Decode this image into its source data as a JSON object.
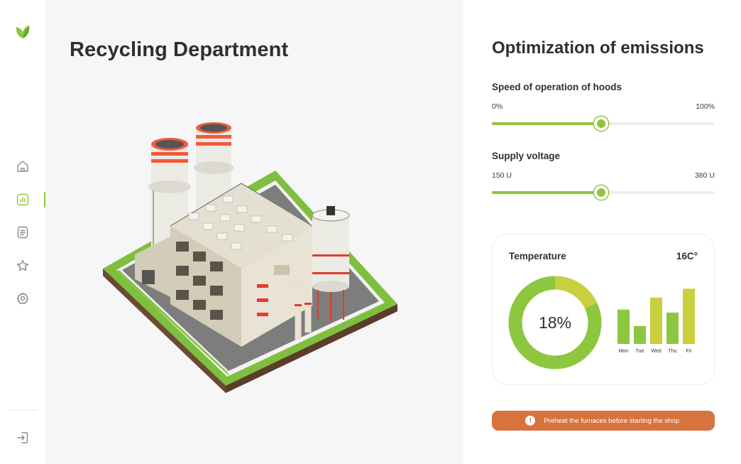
{
  "app": {
    "brand_color": "#8dc63f",
    "logo_icon": "leaf-icon"
  },
  "sidebar": {
    "items": [
      {
        "name": "home",
        "icon": "home-icon",
        "active": false
      },
      {
        "name": "analytics",
        "icon": "chart-icon",
        "active": true
      },
      {
        "name": "documents",
        "icon": "document-icon",
        "active": false
      },
      {
        "name": "favorites",
        "icon": "star-icon",
        "active": false
      },
      {
        "name": "settings",
        "icon": "gear-icon",
        "active": false
      }
    ],
    "logout_icon": "logout-icon"
  },
  "main": {
    "title": "Recycling Department",
    "illustration": "factory-illustration"
  },
  "panel": {
    "title": "Optimization of emissions",
    "sliders": [
      {
        "label": "Speed of operation of hoods",
        "min_label": "0%",
        "max_label": "100%",
        "value_fraction": 0.49
      },
      {
        "label": "Supply voltage",
        "min_label": "150 U",
        "max_label": "380 U",
        "value_fraction": 0.49
      }
    ],
    "temperature": {
      "label": "Temperature",
      "value": "16C°",
      "donut_percent": 18,
      "donut_text": "18%",
      "colors": {
        "main": "#8dc63f",
        "accent": "#c9cf3e"
      }
    },
    "alert": {
      "text": "Preheat the furnaces before starting the shop.",
      "icon": "exclamation-icon",
      "color": "#d6733e"
    }
  },
  "chart_data": {
    "type": "bar",
    "categories": [
      "Mon",
      "Tue",
      "Wed",
      "Thu",
      "Fri"
    ],
    "values": [
      46,
      24,
      62,
      42,
      74
    ],
    "colors": [
      "#8dc63f",
      "#8dc63f",
      "#c9cf3e",
      "#8dc63f",
      "#c9cf3e"
    ],
    "ylim": [
      0,
      80
    ],
    "grid": false,
    "xlabel": "",
    "ylabel": "",
    "title": ""
  }
}
